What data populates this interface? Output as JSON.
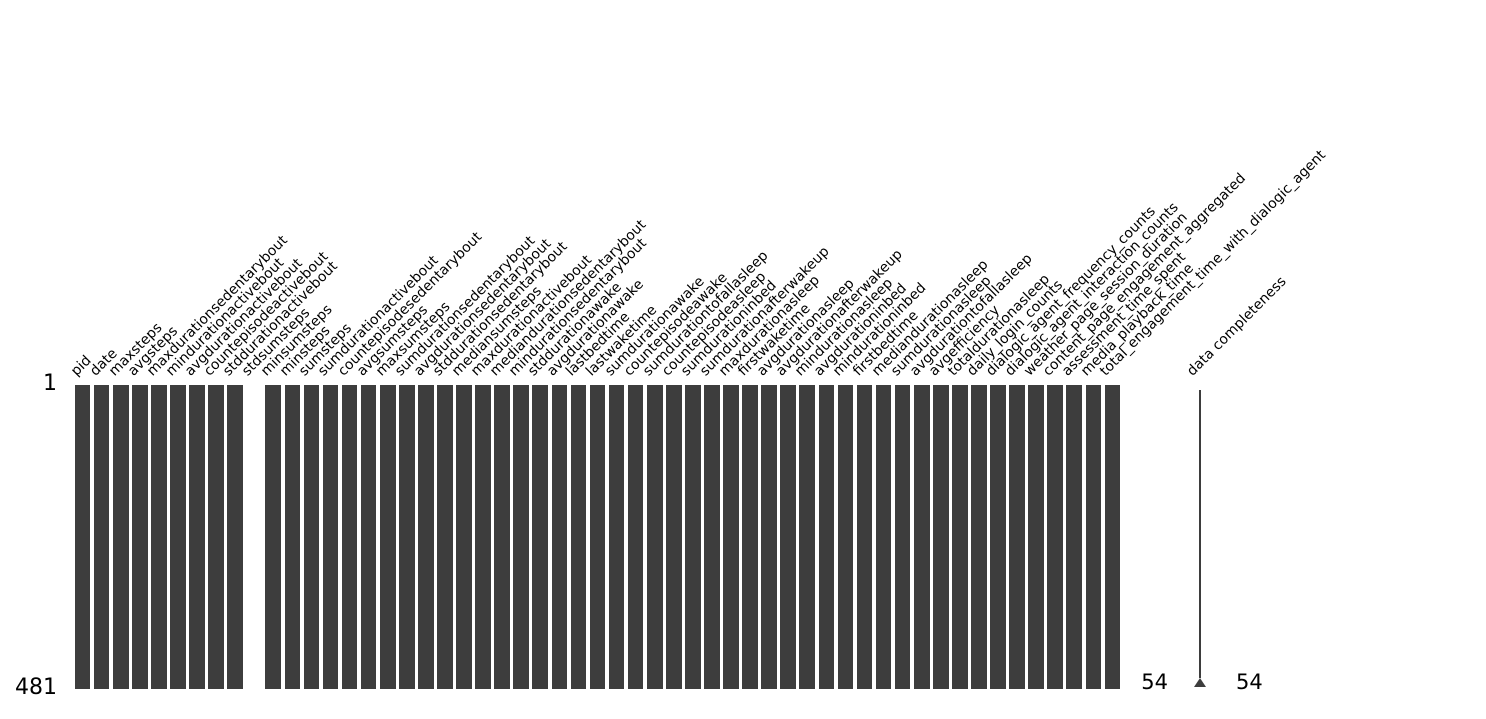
{
  "figure": {
    "row_axis": {
      "top_tick": "1",
      "bottom_tick": "481"
    },
    "sparkline": {
      "label": "data completeness",
      "min_label": "54",
      "max_label": "54"
    },
    "colors": {
      "bar": "#3d3d3d",
      "text": "#000000",
      "background": "#ffffff"
    }
  },
  "chart_data": {
    "type": "heatmap",
    "subtype": "missingno-nullity-matrix",
    "title": "",
    "xlabel": "",
    "ylabel": "",
    "rows": 481,
    "row_axis_ticks": [
      "1",
      "481"
    ],
    "nonnull_per_row": {
      "min": 54,
      "max": 54
    },
    "empty_column_index": 9,
    "sparkline_label": "data completeness",
    "columns": [
      "pid",
      "date",
      "maxsteps",
      "avgsteps",
      "maxdurationsedentarybout",
      "mindurationactivebout",
      "avgdurationactivebout",
      "countepisodeactivebout",
      "stddurationactivebout",
      "stdsumsteps",
      "minsumsteps",
      "minsteps",
      "sumsteps",
      "sumdurationactivebout",
      "countepisodesedentarybout",
      "avgsumsteps",
      "maxsumsteps",
      "sumdurationsedentarybout",
      "avgdurationsedentarybout",
      "stddurationsedentarybout",
      "mediansumsteps",
      "maxdurationactivebout",
      "mediandurationsedentarybout",
      "mindurationsedentarybout",
      "stddurationawake",
      "avgdurationawake",
      "lastbedtime",
      "lastwaketime",
      "sumdurationawake",
      "countepisodeawake",
      "sumdurationtofallasleep",
      "countepisodeasleep",
      "sumdurationinbed",
      "sumdurationafterwakeup",
      "maxdurationasleep",
      "firstwaketime",
      "avgdurationasleep",
      "avgdurationafterwakeup",
      "mindurationasleep",
      "avgdurationinbed",
      "mindurationinbed",
      "firstbedtime",
      "mediandurationasleep",
      "sumdurationasleep",
      "avgdurationtofallasleep",
      "avgefficiency",
      "totaldurationasleep",
      "daily_login_counts",
      "dialogic_agent_frequency_counts",
      "dialogic_agent_interaction_counts",
      "weather_page_session_duration",
      "content_page_engagement_aggregated",
      "assessment_time_spent",
      "media_playback_time",
      "total_engagement_time_with_dialogic_agent"
    ],
    "column_filled": [
      1,
      1,
      1,
      1,
      1,
      1,
      1,
      1,
      1,
      0,
      1,
      1,
      1,
      1,
      1,
      1,
      1,
      1,
      1,
      1,
      1,
      1,
      1,
      1,
      1,
      1,
      1,
      1,
      1,
      1,
      1,
      1,
      1,
      1,
      1,
      1,
      1,
      1,
      1,
      1,
      1,
      1,
      1,
      1,
      1,
      1,
      1,
      1,
      1,
      1,
      1,
      1,
      1,
      1,
      1
    ]
  }
}
